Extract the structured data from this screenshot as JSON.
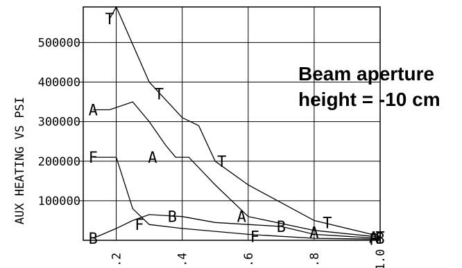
{
  "chart_data": {
    "type": "line",
    "title": "",
    "xlabel": "",
    "ylabel": "AUX HEATING VS PSI",
    "xlim": [
      0.1,
      1.0
    ],
    "ylim": [
      0,
      590000
    ],
    "x_ticks": [
      ".2",
      ".4",
      ".6",
      ".8",
      "1.0"
    ],
    "x_tick_values": [
      0.2,
      0.4,
      0.6,
      0.8,
      1.0
    ],
    "y_ticks": [
      "100000",
      "200000",
      "300000",
      "400000",
      "500000"
    ],
    "y_tick_values": [
      100000,
      200000,
      300000,
      400000,
      500000
    ],
    "grid": true,
    "annotation": [
      "Beam aperture",
      "height = -10 cm"
    ],
    "series": [
      {
        "marker": "T",
        "x": [
          0.18,
          0.2,
          0.3,
          0.4,
          0.45,
          0.5,
          0.6,
          0.8,
          1.0
        ],
        "y": [
          560000,
          590000,
          400000,
          310000,
          290000,
          200000,
          140000,
          50000,
          10000
        ],
        "marker_points": [
          [
            0.18,
            560000
          ],
          [
            0.33,
            370000
          ],
          [
            0.52,
            200000
          ],
          [
            0.84,
            45000
          ],
          [
            1.0,
            8000
          ]
        ]
      },
      {
        "marker": "A",
        "x": [
          0.13,
          0.18,
          0.25,
          0.3,
          0.35,
          0.38,
          0.42,
          0.5,
          0.6,
          0.8,
          1.0
        ],
        "y": [
          330000,
          330000,
          350000,
          300000,
          240000,
          210000,
          210000,
          140000,
          60000,
          25000,
          8000
        ],
        "marker_points": [
          [
            0.13,
            330000
          ],
          [
            0.31,
            210000
          ],
          [
            0.58,
            60000
          ],
          [
            0.8,
            20000
          ],
          [
            0.98,
            8000
          ]
        ]
      },
      {
        "marker": "F",
        "x": [
          0.13,
          0.2,
          0.25,
          0.3,
          0.4,
          0.6,
          0.8,
          1.0
        ],
        "y": [
          210000,
          210000,
          80000,
          40000,
          30000,
          15000,
          5000,
          3000
        ],
        "marker_points": [
          [
            0.13,
            210000
          ],
          [
            0.27,
            40000
          ],
          [
            0.62,
            10000
          ],
          [
            0.98,
            3000
          ]
        ]
      },
      {
        "marker": "B",
        "x": [
          0.13,
          0.2,
          0.25,
          0.3,
          0.4,
          0.5,
          0.6,
          0.7,
          0.8,
          0.9,
          1.0
        ],
        "y": [
          5000,
          30000,
          50000,
          65000,
          60000,
          45000,
          40000,
          35000,
          15000,
          10000,
          5000
        ],
        "marker_points": [
          [
            0.13,
            5000
          ],
          [
            0.37,
            60000
          ],
          [
            0.7,
            35000
          ],
          [
            1.0,
            5000
          ]
        ]
      }
    ]
  }
}
